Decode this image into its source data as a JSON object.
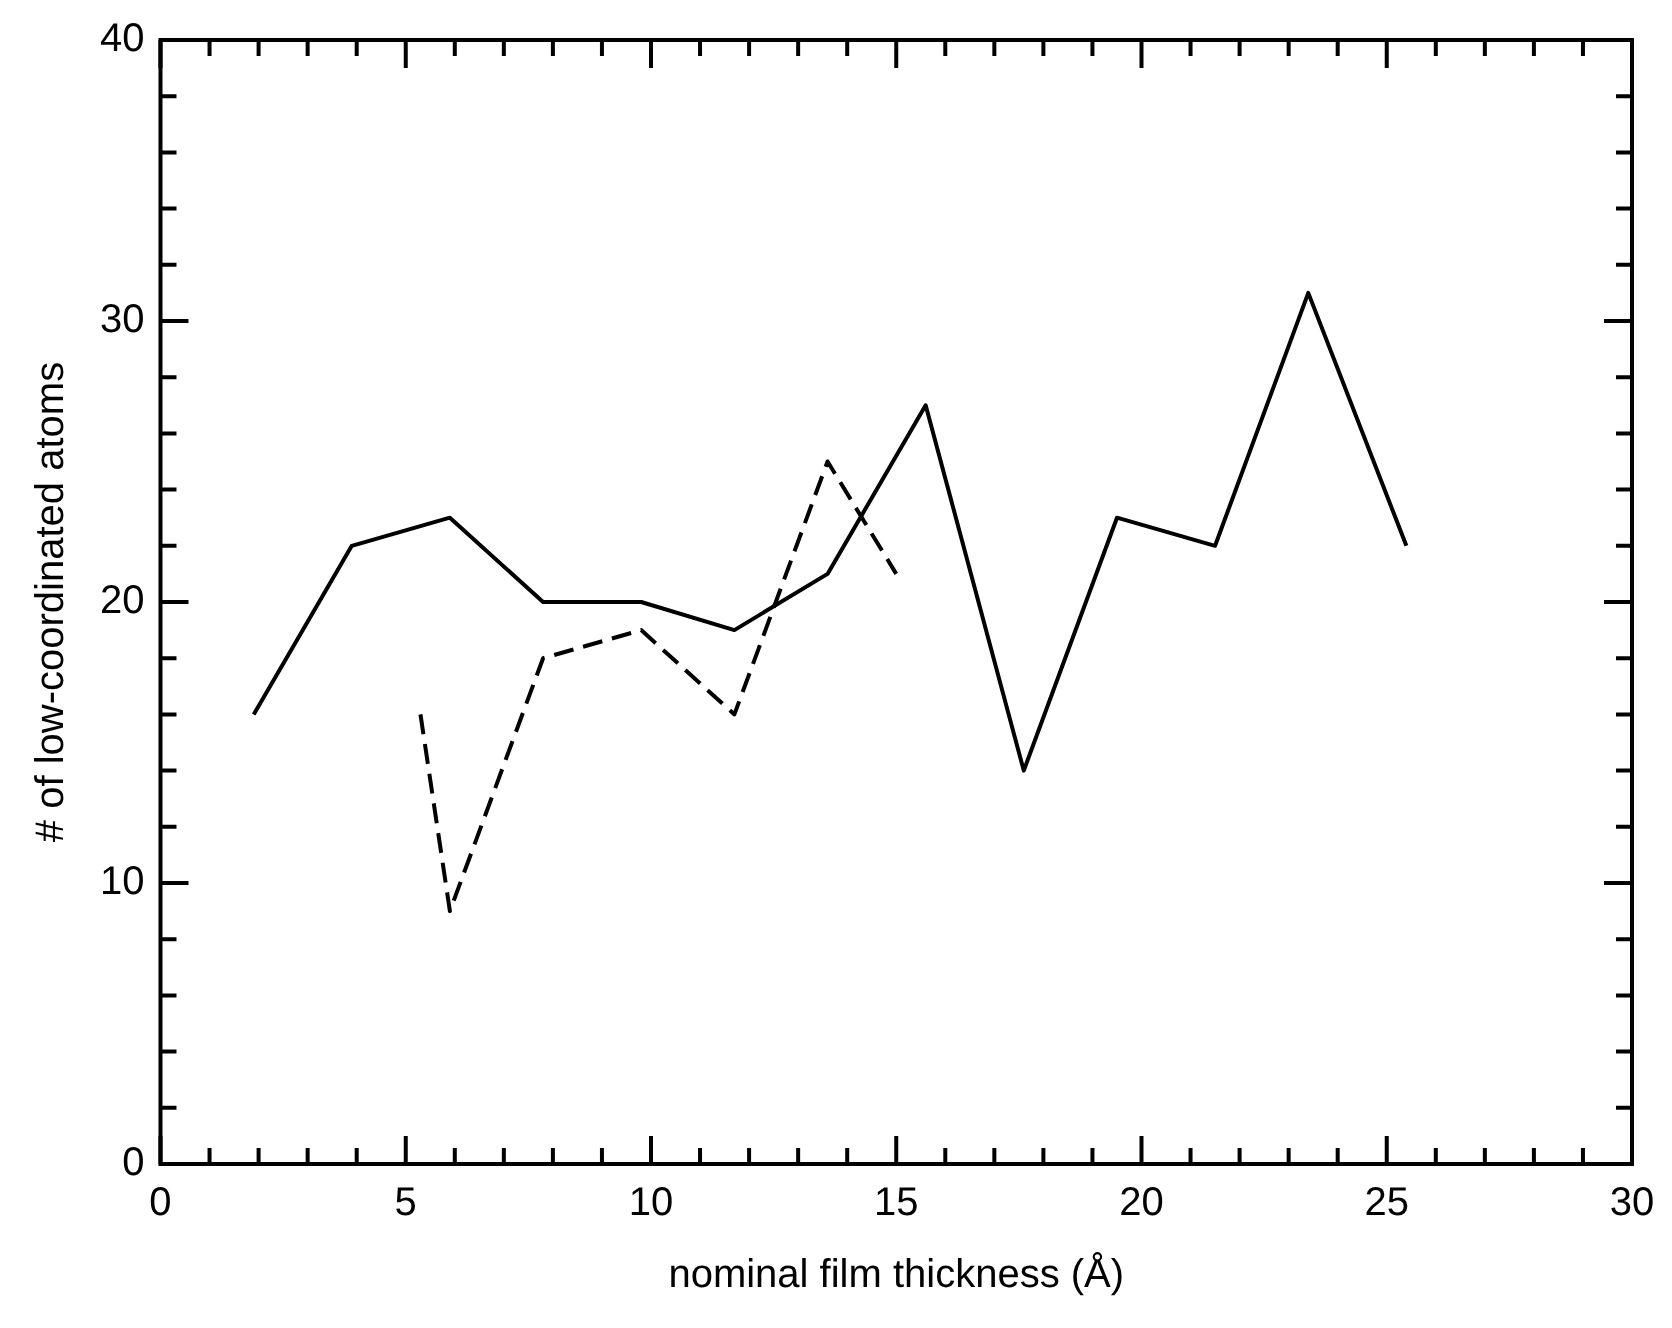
{
  "chart_data": {
    "type": "line",
    "xlabel": "nominal film thickness (Å)",
    "ylabel": "# of low-coordinated atoms",
    "xlim": [
      0,
      30
    ],
    "ylim": [
      0,
      40
    ],
    "xticks": [
      0,
      {
        "value": 1,
        "label": null
      },
      {
        "value": 2,
        "label": null
      },
      {
        "value": 3,
        "label": null
      },
      {
        "value": 4,
        "label": null
      },
      5,
      {
        "value": 6,
        "label": null
      },
      {
        "value": 7,
        "label": null
      },
      {
        "value": 8,
        "label": null
      },
      {
        "value": 9,
        "label": null
      },
      10,
      {
        "value": 11,
        "label": null
      },
      {
        "value": 12,
        "label": null
      },
      {
        "value": 13,
        "label": null
      },
      {
        "value": 14,
        "label": null
      },
      15,
      {
        "value": 16,
        "label": null
      },
      {
        "value": 17,
        "label": null
      },
      {
        "value": 18,
        "label": null
      },
      {
        "value": 19,
        "label": null
      },
      20,
      {
        "value": 21,
        "label": null
      },
      {
        "value": 22,
        "label": null
      },
      {
        "value": 23,
        "label": null
      },
      {
        "value": 24,
        "label": null
      },
      25,
      {
        "value": 26,
        "label": null
      },
      {
        "value": 27,
        "label": null
      },
      {
        "value": 28,
        "label": null
      },
      {
        "value": 29,
        "label": null
      },
      30
    ],
    "yticks": [
      0,
      {
        "value": 2,
        "label": null
      },
      {
        "value": 4,
        "label": null
      },
      {
        "value": 6,
        "label": null
      },
      {
        "value": 8,
        "label": null
      },
      10,
      {
        "value": 12,
        "label": null
      },
      {
        "value": 14,
        "label": null
      },
      {
        "value": 16,
        "label": null
      },
      {
        "value": 18,
        "label": null
      },
      20,
      {
        "value": 22,
        "label": null
      },
      {
        "value": 24,
        "label": null
      },
      {
        "value": 26,
        "label": null
      },
      {
        "value": 28,
        "label": null
      },
      30,
      {
        "value": 32,
        "label": null
      },
      {
        "value": 34,
        "label": null
      },
      {
        "value": 36,
        "label": null
      },
      {
        "value": 38,
        "label": null
      },
      40
    ],
    "grid": false,
    "legend": false,
    "marker": "none",
    "series": [
      {
        "color": "#000000",
        "line_style": "solid",
        "x": [
          1.9,
          3.9,
          5.9,
          7.8,
          9.8,
          11.7,
          13.6,
          15.6,
          17.6,
          19.5,
          21.5,
          23.4,
          25.4
        ],
        "values": [
          16,
          22,
          23,
          20,
          20,
          19,
          21,
          27,
          14,
          23,
          22,
          31,
          22
        ]
      },
      {
        "color": "#000000",
        "line_style": "dashed",
        "x": [
          5.3,
          5.9,
          7.8,
          9.8,
          11.7,
          13.6,
          15.0
        ],
        "values": [
          16,
          9,
          18,
          19,
          16,
          25,
          21
        ]
      }
    ]
  }
}
